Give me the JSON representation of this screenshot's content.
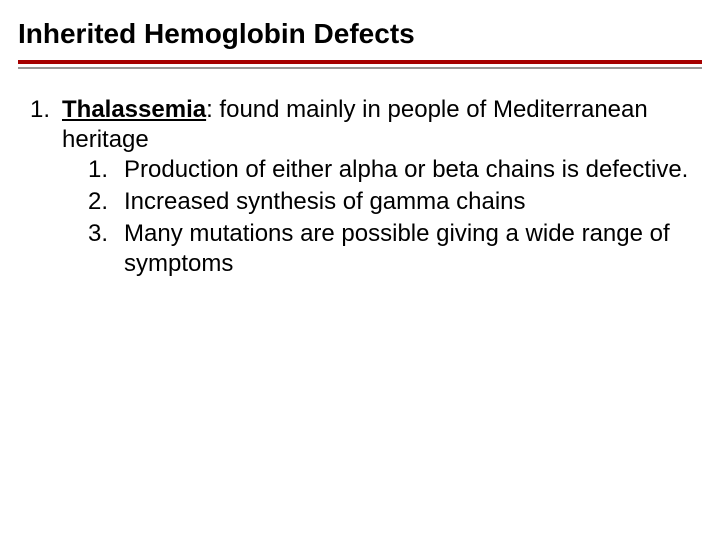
{
  "colors": {
    "accent_red": "#a60000",
    "divider_grey": "#999999",
    "text": "#000000",
    "background": "#ffffff"
  },
  "typography": {
    "title_fontsize": 28,
    "title_weight": "bold",
    "body_fontsize": 24,
    "font_family": "Arial"
  },
  "title": "Inherited Hemoglobin Defects",
  "list": {
    "num1": "1.",
    "term1": "Thalassemia",
    "desc1": ":  found mainly in people of Mediterranean heritage",
    "sub": {
      "num1": "1.",
      "text1": "Production of either alpha or beta chains is defective.",
      "num2": "2.",
      "text2": "Increased synthesis of gamma chains",
      "num3": "3.",
      "text3": "Many mutations are possible giving a wide range of symptoms"
    }
  }
}
